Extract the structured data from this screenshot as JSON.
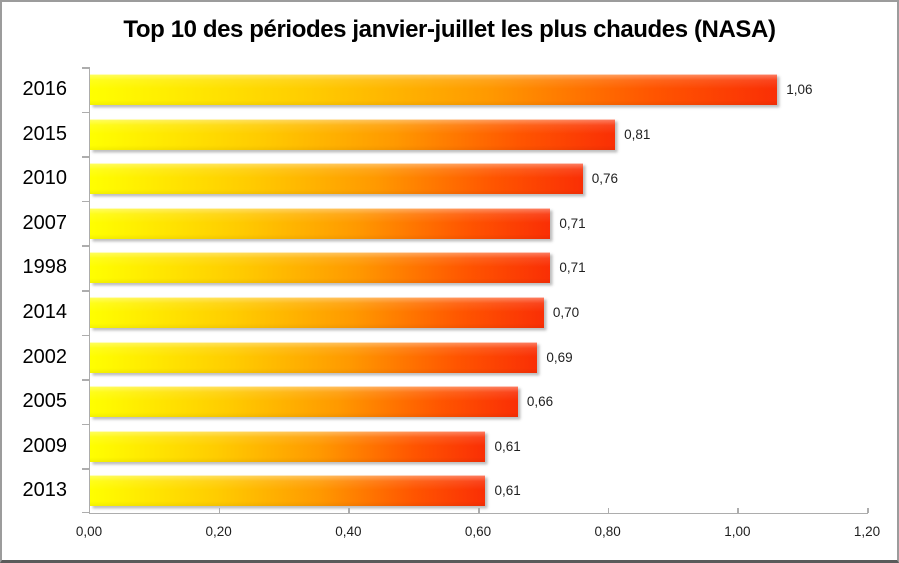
{
  "frame": {
    "background": "#ffffff",
    "border_color": "#9c9c9c",
    "bottom_border_color": "#5a5a5a"
  },
  "chart_data": {
    "type": "bar",
    "orientation": "horizontal",
    "title": "Top 10 des périodes janvier-juillet les plus chaudes (NASA)",
    "categories": [
      "2016",
      "2015",
      "2010",
      "2007",
      "1998",
      "2014",
      "2002",
      "2005",
      "2009",
      "2013"
    ],
    "values": [
      1.06,
      0.81,
      0.76,
      0.71,
      0.71,
      0.7,
      0.69,
      0.66,
      0.61,
      0.61
    ],
    "value_labels": [
      "1,06",
      "0,81",
      "0,76",
      "0,71",
      "0,71",
      "0,70",
      "0,69",
      "0,66",
      "0,61",
      "0,61"
    ],
    "x_ticks": [
      "0,00",
      "0,20",
      "0,40",
      "0,60",
      "0,80",
      "1,00",
      "1,20"
    ],
    "x_tick_values": [
      0.0,
      0.2,
      0.4,
      0.6,
      0.8,
      1.0,
      1.2
    ],
    "xlim": [
      0,
      1.2
    ],
    "xlabel": "",
    "ylabel": "",
    "grid": false,
    "legend": false,
    "colors": {
      "bar_gradient_start": "#ffff00",
      "bar_gradient_mid1": "#ffcc00",
      "bar_gradient_mid2": "#ff9900",
      "bar_gradient_mid3": "#ff5500",
      "bar_gradient_end": "#fa2f05",
      "axis_line": "#adadad",
      "tick_label_text": "#1f1f1f",
      "value_label_text": "#1f1f1f",
      "category_label_text": "#000000",
      "title_text": "#000000"
    }
  }
}
